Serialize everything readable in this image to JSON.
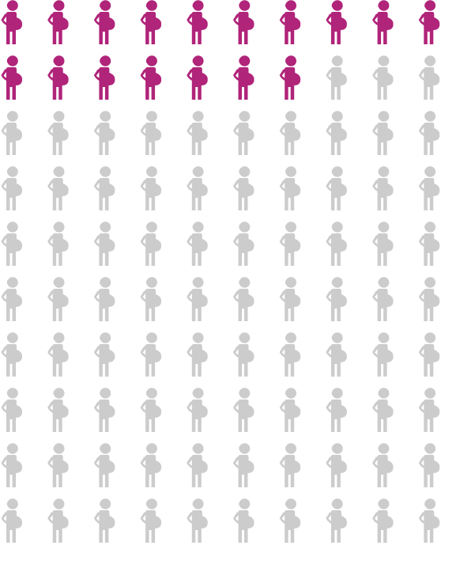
{
  "chart_data": {
    "type": "pictogram",
    "values": [
      17,
      83
    ],
    "colors": [
      "#b0247a",
      "#cccccc"
    ]
  }
}
